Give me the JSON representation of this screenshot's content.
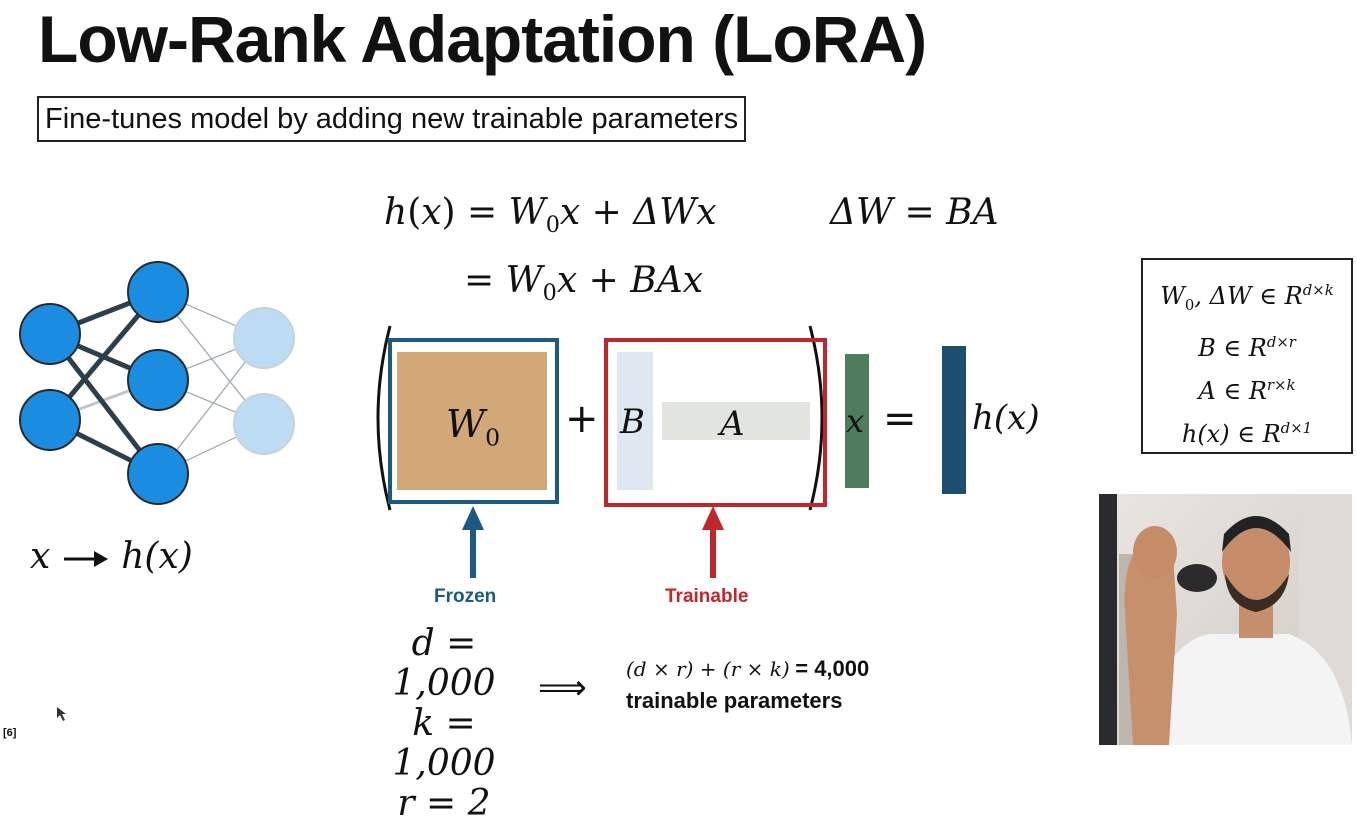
{
  "slide": {
    "title": "Low-Rank Adaptation (LoRA)",
    "subtitle": "Fine-tunes model by adding new trainable parameters"
  },
  "equations": {
    "h": "h",
    "x": "x",
    "W": "W",
    "zero": "0",
    "delta_W": "ΔW",
    "BA": "BA",
    "BAx": "BAx",
    "equals": "=",
    "plus": "+"
  },
  "matrices": {
    "w0_label": "W",
    "w0_sub": "0",
    "b_label": "B",
    "a_label": "A",
    "x_label": "x",
    "hx_label": "h(x)",
    "frozen_label": "Frozen",
    "trainable_label": "Trainable",
    "colors": {
      "frozen": "#1d5a83",
      "trainable": "#c0272d",
      "w0": "#d3a878",
      "b": "#dfe8f0",
      "a": "#e2e4df",
      "x": "#4f7c5c",
      "hx": "#1e4e6f"
    }
  },
  "dimensions": {
    "line1_vars": "W",
    "line1_sub": "0",
    "line1_rest": ", ΔW ∈ R",
    "line1_sup": "d×k",
    "line2_var": "B ∈ R",
    "line2_sup": "d×r",
    "line3_var": "A ∈ R",
    "line3_sup": "r×k",
    "line4_var": "h(x) ∈ R",
    "line4_sup": "d×1"
  },
  "params": {
    "d": "d = 1,000",
    "k": "k = 1,000",
    "r": "r = 2",
    "implies": "⟹",
    "formula": "(d × r) + (r × k)",
    "result": "= 4,000",
    "result_label": "trainable parameters"
  },
  "network": {
    "mapping_x": "x",
    "mapping_hx": "h(x)"
  },
  "reference": "[6]"
}
